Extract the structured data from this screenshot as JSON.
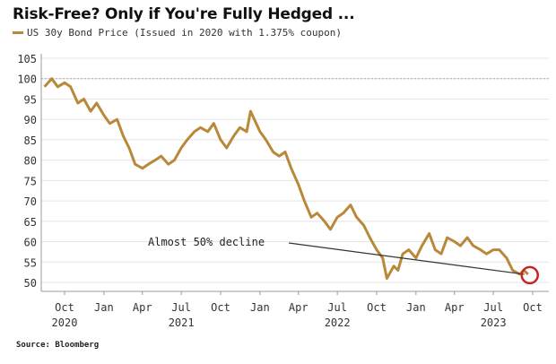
{
  "chart_data": {
    "type": "line",
    "title": "Risk-Free? Only if You're Fully Hedged ...",
    "source": "Source: Bloomberg",
    "legend_placement": "top-left",
    "grid": true,
    "ylim": [
      50,
      105
    ],
    "y_ticks": [
      "105",
      "100",
      "95",
      "90",
      "85",
      "80",
      "75",
      "70",
      "65",
      "60",
      "55",
      "50"
    ],
    "reference_line": {
      "value": 100,
      "style": "dotted"
    },
    "x_ticks": [
      {
        "date": "2020-10-01",
        "label": "Oct",
        "year": "2020"
      },
      {
        "date": "2021-01-01",
        "label": "Jan",
        "year": ""
      },
      {
        "date": "2021-04-01",
        "label": "Apr",
        "year": ""
      },
      {
        "date": "2021-07-01",
        "label": "Jul",
        "year": "2021"
      },
      {
        "date": "2021-10-01",
        "label": "Oct",
        "year": ""
      },
      {
        "date": "2022-01-01",
        "label": "Jan",
        "year": ""
      },
      {
        "date": "2022-04-01",
        "label": "Apr",
        "year": ""
      },
      {
        "date": "2022-07-01",
        "label": "Jul",
        "year": "2022"
      },
      {
        "date": "2022-10-01",
        "label": "Oct",
        "year": ""
      },
      {
        "date": "2023-01-01",
        "label": "Jan",
        "year": ""
      },
      {
        "date": "2023-04-01",
        "label": "Apr",
        "year": ""
      },
      {
        "date": "2023-07-01",
        "label": "Jul",
        "year": "2023"
      },
      {
        "date": "2023-10-01",
        "label": "Oct",
        "year": ""
      }
    ],
    "series": [
      {
        "name": "US 30y Bond Price (Issued in 2020 with 1.375% coupon)",
        "color": "#b8893a",
        "points": [
          [
            "2020-08-15",
            98
          ],
          [
            "2020-09-01",
            100
          ],
          [
            "2020-09-15",
            98
          ],
          [
            "2020-10-01",
            99
          ],
          [
            "2020-10-15",
            98
          ],
          [
            "2020-11-01",
            94
          ],
          [
            "2020-11-15",
            95
          ],
          [
            "2020-12-01",
            92
          ],
          [
            "2020-12-15",
            94
          ],
          [
            "2021-01-01",
            91
          ],
          [
            "2021-01-15",
            89
          ],
          [
            "2021-02-01",
            90
          ],
          [
            "2021-02-15",
            86
          ],
          [
            "2021-03-01",
            83
          ],
          [
            "2021-03-15",
            79
          ],
          [
            "2021-04-01",
            78
          ],
          [
            "2021-04-15",
            79
          ],
          [
            "2021-05-01",
            80
          ],
          [
            "2021-05-15",
            81
          ],
          [
            "2021-06-01",
            79
          ],
          [
            "2021-06-15",
            80
          ],
          [
            "2021-07-01",
            83
          ],
          [
            "2021-07-15",
            85
          ],
          [
            "2021-08-01",
            87
          ],
          [
            "2021-08-15",
            88
          ],
          [
            "2021-09-01",
            87
          ],
          [
            "2021-09-15",
            89
          ],
          [
            "2021-10-01",
            85
          ],
          [
            "2021-10-15",
            83
          ],
          [
            "2021-11-01",
            86
          ],
          [
            "2021-11-15",
            88
          ],
          [
            "2021-12-01",
            87
          ],
          [
            "2021-12-10",
            92
          ],
          [
            "2022-01-01",
            87
          ],
          [
            "2022-01-15",
            85
          ],
          [
            "2022-02-01",
            82
          ],
          [
            "2022-02-15",
            81
          ],
          [
            "2022-03-01",
            82
          ],
          [
            "2022-03-15",
            78
          ],
          [
            "2022-04-01",
            74
          ],
          [
            "2022-04-15",
            70
          ],
          [
            "2022-05-01",
            66
          ],
          [
            "2022-05-15",
            67
          ],
          [
            "2022-06-01",
            65
          ],
          [
            "2022-06-15",
            63
          ],
          [
            "2022-07-01",
            66
          ],
          [
            "2022-07-15",
            67
          ],
          [
            "2022-08-01",
            69
          ],
          [
            "2022-08-15",
            66
          ],
          [
            "2022-09-01",
            64
          ],
          [
            "2022-09-15",
            61
          ],
          [
            "2022-10-01",
            58
          ],
          [
            "2022-10-15",
            56
          ],
          [
            "2022-10-25",
            51
          ],
          [
            "2022-11-10",
            54
          ],
          [
            "2022-11-20",
            53
          ],
          [
            "2022-12-01",
            57
          ],
          [
            "2022-12-15",
            58
          ],
          [
            "2023-01-01",
            56
          ],
          [
            "2023-01-15",
            59
          ],
          [
            "2023-02-01",
            62
          ],
          [
            "2023-02-15",
            58
          ],
          [
            "2023-03-01",
            57
          ],
          [
            "2023-03-15",
            61
          ],
          [
            "2023-04-01",
            60
          ],
          [
            "2023-04-15",
            59
          ],
          [
            "2023-05-01",
            61
          ],
          [
            "2023-05-15",
            59
          ],
          [
            "2023-06-01",
            58
          ],
          [
            "2023-06-15",
            57
          ],
          [
            "2023-07-01",
            58
          ],
          [
            "2023-07-15",
            58
          ],
          [
            "2023-08-01",
            56
          ],
          [
            "2023-08-15",
            53
          ],
          [
            "2023-09-01",
            52
          ],
          [
            "2023-09-10",
            53
          ],
          [
            "2023-09-20",
            52
          ]
        ]
      }
    ],
    "annotation": {
      "text": "Almost 50% decline",
      "target_date": "2023-09-20",
      "target_value": 52,
      "highlight_color": "#cc2222"
    }
  }
}
